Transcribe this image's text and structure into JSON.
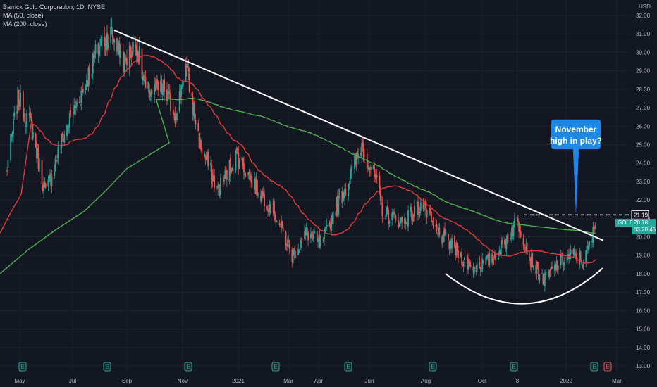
{
  "header": {
    "title": "Barrick Gold Corporation, 1D, NYSE",
    "ma50": "MA (50, close)",
    "ma200": "MA (200, close)"
  },
  "annotation": {
    "line1": "November",
    "line2": "high in play?"
  },
  "colors": {
    "up": "#26a69a",
    "down": "#ef5350",
    "ma50": "#e03a3a",
    "ma200": "#4caf50",
    "bg": "#131722",
    "grid": "#1e222d"
  },
  "chart_data": {
    "type": "candlestick",
    "title": "Barrick Gold Corporation, 1D, NYSE",
    "symbol": "GOLD",
    "currency": "USD",
    "last_price": 20.78,
    "countdown": "03:20:45",
    "resistance_level": 21.19,
    "y_ticks": [
      13,
      14,
      15,
      16,
      17,
      18,
      19,
      20,
      21,
      22,
      23,
      24,
      25,
      26,
      27,
      28,
      29,
      30,
      31,
      32
    ],
    "y_tick_labels": [
      "13.00",
      "14.00",
      "15.00",
      "16.00",
      "17.00",
      "18.00",
      "19.00",
      "20.00",
      "21.00",
      "22.00",
      "23.00",
      "24.00",
      "25.00",
      "26.00",
      "27.00",
      "28.00",
      "29.00",
      "30.00",
      "31.00",
      "32.00"
    ],
    "ylim": [
      12.5,
      32.5
    ],
    "x_ticks": [
      "May",
      "Jul",
      "Sep",
      "Nov",
      "2021",
      "Mar",
      "Apr",
      "Jun",
      "Aug",
      "Oct",
      "8",
      "2022",
      "Mar"
    ],
    "earnings_markers": [
      "E",
      "E",
      "E",
      "E",
      "E",
      "E",
      "E",
      "E",
      "E"
    ],
    "price_path": [
      {
        "date": "2020-04-22",
        "price": 23.5
      },
      {
        "date": "2020-05-05",
        "price": 27.5
      },
      {
        "date": "2020-05-20",
        "price": 26.0
      },
      {
        "date": "2020-06-05",
        "price": 22.3
      },
      {
        "date": "2020-06-25",
        "price": 25.5
      },
      {
        "date": "2020-07-15",
        "price": 27.8
      },
      {
        "date": "2020-08-05",
        "price": 30.5
      },
      {
        "date": "2020-08-18",
        "price": 31.0
      },
      {
        "date": "2020-09-01",
        "price": 29.5
      },
      {
        "date": "2020-09-15",
        "price": 30.5
      },
      {
        "date": "2020-09-25",
        "price": 27.8
      },
      {
        "date": "2020-10-15",
        "price": 28.0
      },
      {
        "date": "2020-10-30",
        "price": 26.5
      },
      {
        "date": "2020-11-08",
        "price": 29.5
      },
      {
        "date": "2020-11-25",
        "price": 25.0
      },
      {
        "date": "2020-12-15",
        "price": 22.5
      },
      {
        "date": "2021-01-05",
        "price": 24.5
      },
      {
        "date": "2021-01-25",
        "price": 22.8
      },
      {
        "date": "2021-02-15",
        "price": 21.5
      },
      {
        "date": "2021-03-08",
        "price": 19.0
      },
      {
        "date": "2021-03-25",
        "price": 20.2
      },
      {
        "date": "2021-04-10",
        "price": 19.5
      },
      {
        "date": "2021-04-25",
        "price": 21.5
      },
      {
        "date": "2021-05-10",
        "price": 23.0
      },
      {
        "date": "2021-05-25",
        "price": 25.0
      },
      {
        "date": "2021-06-10",
        "price": 23.0
      },
      {
        "date": "2021-06-18",
        "price": 21.3
      },
      {
        "date": "2021-07-10",
        "price": 20.8
      },
      {
        "date": "2021-08-01",
        "price": 21.8
      },
      {
        "date": "2021-08-15",
        "price": 20.3
      },
      {
        "date": "2021-09-01",
        "price": 19.6
      },
      {
        "date": "2021-09-25",
        "price": 18.3
      },
      {
        "date": "2021-10-15",
        "price": 18.7
      },
      {
        "date": "2021-10-30",
        "price": 19.5
      },
      {
        "date": "2021-11-15",
        "price": 20.9
      },
      {
        "date": "2021-11-30",
        "price": 18.8
      },
      {
        "date": "2021-12-15",
        "price": 17.6
      },
      {
        "date": "2021-12-30",
        "price": 18.5
      },
      {
        "date": "2022-01-15",
        "price": 19.0
      },
      {
        "date": "2022-01-28",
        "price": 18.7
      },
      {
        "date": "2022-02-05",
        "price": 19.6
      },
      {
        "date": "2022-02-11",
        "price": 20.78
      }
    ],
    "series": [
      {
        "name": "MA (50, close)"
      },
      {
        "name": "MA (200, close)"
      }
    ]
  }
}
